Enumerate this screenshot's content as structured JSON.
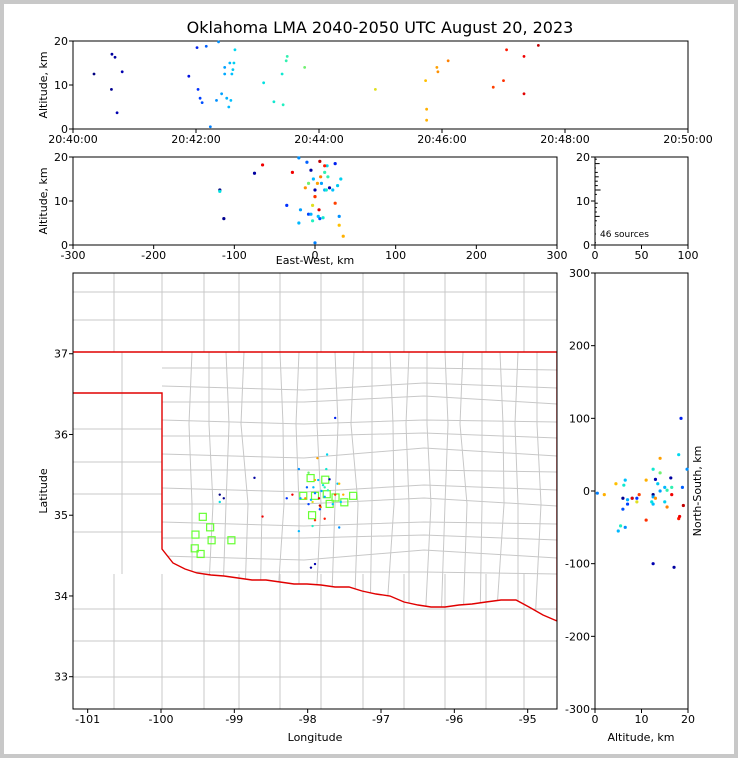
{
  "chart_data": {
    "type": "scatter",
    "title": "Oklahoma LMA 2040-2050 UTC August 20, 2023",
    "panels": {
      "time_altitude": {
        "ylabel": "Altitude, km",
        "ylim": [
          0,
          20
        ],
        "yticks": [
          "0",
          "10",
          "20"
        ],
        "xticks": [
          "20:40:00",
          "20:42:00",
          "20:44:00",
          "20:46:00",
          "20:48:00",
          "20:50:00"
        ],
        "points": [
          {
            "t": 20.5,
            "alt": 12.5,
            "color": "#000080"
          },
          {
            "t": 37.5,
            "alt": 9.0,
            "color": "#000090"
          },
          {
            "t": 38.0,
            "alt": 17.0,
            "color": "#0000a0"
          },
          {
            "t": 41.0,
            "alt": 16.3,
            "color": "#0000a0"
          },
          {
            "t": 43.0,
            "alt": 3.7,
            "color": "#0000b0"
          },
          {
            "t": 48.0,
            "alt": 13.0,
            "color": "#0000b0"
          },
          {
            "t": 113.0,
            "alt": 12.0,
            "color": "#0010e0"
          },
          {
            "t": 121.0,
            "alt": 18.5,
            "color": "#0020f0"
          },
          {
            "t": 122.0,
            "alt": 9.0,
            "color": "#0030ff"
          },
          {
            "t": 124.0,
            "alt": 7.0,
            "color": "#0040ff"
          },
          {
            "t": 126.0,
            "alt": 6.0,
            "color": "#0050ff"
          },
          {
            "t": 130.0,
            "alt": 18.8,
            "color": "#0060ff"
          },
          {
            "t": 134.0,
            "alt": 0.5,
            "color": "#0080ff"
          },
          {
            "t": 140.0,
            "alt": 6.5,
            "color": "#0090ff"
          },
          {
            "t": 142.0,
            "alt": 19.8,
            "color": "#0090ff"
          },
          {
            "t": 145.0,
            "alt": 8.0,
            "color": "#00a0ff"
          },
          {
            "t": 148.0,
            "alt": 14.0,
            "color": "#00a0ff"
          },
          {
            "t": 148.0,
            "alt": 12.5,
            "color": "#00a8ff"
          },
          {
            "t": 150.0,
            "alt": 7.0,
            "color": "#00b0ff"
          },
          {
            "t": 152.0,
            "alt": 5.0,
            "color": "#00b8ff"
          },
          {
            "t": 153.0,
            "alt": 15.0,
            "color": "#00b8ff"
          },
          {
            "t": 154.0,
            "alt": 6.5,
            "color": "#00c0ff"
          },
          {
            "t": 155.0,
            "alt": 12.5,
            "color": "#00c0ff"
          },
          {
            "t": 156.0,
            "alt": 13.5,
            "color": "#00c8f0"
          },
          {
            "t": 157.0,
            "alt": 15.0,
            "color": "#00d0f0"
          },
          {
            "t": 158.0,
            "alt": 18.0,
            "color": "#00d8f0"
          },
          {
            "t": 186.0,
            "alt": 10.5,
            "color": "#00e0e0"
          },
          {
            "t": 196.0,
            "alt": 6.2,
            "color": "#10e8d0"
          },
          {
            "t": 204.0,
            "alt": 12.5,
            "color": "#10e8d0"
          },
          {
            "t": 205.0,
            "alt": 5.5,
            "color": "#20f0c0"
          },
          {
            "t": 208.0,
            "alt": 15.5,
            "color": "#30f0b0"
          },
          {
            "t": 209.0,
            "alt": 16.5,
            "color": "#30f0b0"
          },
          {
            "t": 226.0,
            "alt": 14.0,
            "color": "#70f070"
          },
          {
            "t": 295.0,
            "alt": 9.0,
            "color": "#e0e020"
          },
          {
            "t": 344.0,
            "alt": 11.0,
            "color": "#ffc000"
          },
          {
            "t": 345.0,
            "alt": 4.5,
            "color": "#ffb000"
          },
          {
            "t": 345.0,
            "alt": 2.0,
            "color": "#ffb000"
          },
          {
            "t": 355.0,
            "alt": 14.0,
            "color": "#ffa000"
          },
          {
            "t": 356.0,
            "alt": 13.0,
            "color": "#ff9000"
          },
          {
            "t": 366.0,
            "alt": 15.5,
            "color": "#ff8000"
          },
          {
            "t": 410.0,
            "alt": 9.5,
            "color": "#ff4000"
          },
          {
            "t": 420.0,
            "alt": 11.0,
            "color": "#ff3000"
          },
          {
            "t": 423.0,
            "alt": 18.0,
            "color": "#ff1800"
          },
          {
            "t": 440.0,
            "alt": 16.5,
            "color": "#f00000"
          },
          {
            "t": 440.0,
            "alt": 8.0,
            "color": "#e00000"
          },
          {
            "t": 454.0,
            "alt": 19.0,
            "color": "#c00000"
          }
        ]
      },
      "eastwest_altitude": {
        "xlabel": "East-West, km",
        "ylabel": "Altitude, km",
        "xlim": [
          -300,
          300
        ],
        "ylim": [
          0,
          20
        ],
        "xticks": [
          "-300",
          "-200",
          "-100",
          "0",
          "100",
          "200",
          "300"
        ],
        "yticks": [
          "0",
          "10",
          "20"
        ]
      },
      "histogram": {
        "xlim": [
          0,
          100
        ],
        "ylim": [
          0,
          20
        ],
        "xticks": [
          "0",
          "50",
          "100"
        ],
        "yticks": [
          "0",
          "10",
          "20"
        ],
        "label": "46 sources"
      },
      "map": {
        "xlabel": "Longitude",
        "ylabel": "Latitude",
        "xlim": [
          -101.2,
          -94.6
        ],
        "ylim": [
          32.6,
          38.0
        ],
        "xticks": [
          "-101",
          "-100",
          "-99",
          "-98",
          "-97",
          "-96",
          "-95"
        ],
        "yticks": [
          "33",
          "34",
          "35",
          "36",
          "37"
        ],
        "stations": [
          {
            "lon": -97.96,
            "lat": 35.46
          },
          {
            "lon": -97.76,
            "lat": 35.44
          },
          {
            "lon": -98.06,
            "lat": 35.24
          },
          {
            "lon": -97.9,
            "lat": 35.24
          },
          {
            "lon": -97.74,
            "lat": 35.26
          },
          {
            "lon": -97.62,
            "lat": 35.22
          },
          {
            "lon": -97.38,
            "lat": 35.24
          },
          {
            "lon": -97.5,
            "lat": 35.16
          },
          {
            "lon": -97.7,
            "lat": 35.14
          },
          {
            "lon": -97.94,
            "lat": 35.0
          },
          {
            "lon": -99.43,
            "lat": 34.98
          },
          {
            "lon": -99.33,
            "lat": 34.85
          },
          {
            "lon": -99.53,
            "lat": 34.76
          },
          {
            "lon": -99.31,
            "lat": 34.69
          },
          {
            "lon": -99.04,
            "lat": 34.69
          },
          {
            "lon": -99.54,
            "lat": 34.59
          },
          {
            "lon": -99.46,
            "lat": 34.52
          }
        ]
      },
      "altitude_northsouth": {
        "xlabel": "Altitude, km",
        "ylabel": "North-South, km",
        "xlim": [
          0,
          20
        ],
        "ylim": [
          -300,
          300
        ],
        "xticks": [
          "0",
          "10",
          "20"
        ],
        "yticks": [
          "-300",
          "-200",
          "-100",
          "0",
          "100",
          "200",
          "300"
        ]
      }
    },
    "sources": [
      {
        "ew": -118,
        "ns": -5,
        "alt": 12.5,
        "color": "#000080"
      },
      {
        "ew": -113,
        "ns": -10,
        "alt": 6.0,
        "color": "#000090"
      },
      {
        "ew": -75,
        "ns": 18,
        "alt": 16.3,
        "color": "#0000a0"
      },
      {
        "ew": -5,
        "ns": -105,
        "alt": 17.0,
        "color": "#0000a0"
      },
      {
        "ew": 0,
        "ns": -100,
        "alt": 12.5,
        "color": "#0000b0"
      },
      {
        "ew": 18,
        "ns": 16,
        "alt": 13.0,
        "color": "#0000b0"
      },
      {
        "ew": 25,
        "ns": 100,
        "alt": 18.5,
        "color": "#0020f0"
      },
      {
        "ew": -35,
        "ns": -10,
        "alt": 9.0,
        "color": "#0030ff"
      },
      {
        "ew": -8,
        "ns": -18,
        "alt": 7.0,
        "color": "#0040ff"
      },
      {
        "ew": 6,
        "ns": -25,
        "alt": 6.0,
        "color": "#0050ff"
      },
      {
        "ew": -10,
        "ns": 5,
        "alt": 18.8,
        "color": "#0060ff"
      },
      {
        "ew": 0,
        "ns": -3,
        "alt": 0.5,
        "color": "#0080ff"
      },
      {
        "ew": 30,
        "ns": -50,
        "alt": 6.5,
        "color": "#0090ff"
      },
      {
        "ew": -20,
        "ns": 30,
        "alt": 19.8,
        "color": "#0090ff"
      },
      {
        "ew": -18,
        "ns": -10,
        "alt": 8.0,
        "color": "#00a0ff"
      },
      {
        "ew": 8,
        "ns": 0,
        "alt": 14.0,
        "color": "#00a0ff"
      },
      {
        "ew": 12,
        "ns": -8,
        "alt": 12.5,
        "color": "#00a8ff"
      },
      {
        "ew": -5,
        "ns": -12,
        "alt": 7.0,
        "color": "#00b0ff"
      },
      {
        "ew": -20,
        "ns": -55,
        "alt": 5.0,
        "color": "#00b8ff"
      },
      {
        "ew": -2,
        "ns": 5,
        "alt": 15.0,
        "color": "#00b8ff"
      },
      {
        "ew": 4,
        "ns": 15,
        "alt": 6.5,
        "color": "#00c0ff"
      },
      {
        "ew": 22,
        "ns": -18,
        "alt": 12.5,
        "color": "#00c0ff"
      },
      {
        "ew": 28,
        "ns": 10,
        "alt": 13.5,
        "color": "#00c8f0"
      },
      {
        "ew": 32,
        "ns": -15,
        "alt": 15.0,
        "color": "#00d0f0"
      },
      {
        "ew": 15,
        "ns": 50,
        "alt": 18.0,
        "color": "#00d8f0"
      },
      {
        "ew": -118,
        "ns": -15,
        "alt": 12.2,
        "color": "#00e0e0"
      },
      {
        "ew": 10,
        "ns": 8,
        "alt": 6.2,
        "color": "#10e8d0"
      },
      {
        "ew": 14,
        "ns": 30,
        "alt": 12.5,
        "color": "#10e8d0"
      },
      {
        "ew": -3,
        "ns": -48,
        "alt": 5.5,
        "color": "#20f0c0"
      },
      {
        "ew": 16,
        "ns": 1,
        "alt": 15.5,
        "color": "#30f0b0"
      },
      {
        "ew": 12,
        "ns": 5,
        "alt": 16.5,
        "color": "#30f0b0"
      },
      {
        "ew": -8,
        "ns": 25,
        "alt": 14.0,
        "color": "#70f070"
      },
      {
        "ew": -3,
        "ns": -15,
        "alt": 9.0,
        "color": "#e0e020"
      },
      {
        "ew": 30,
        "ns": 10,
        "alt": 4.5,
        "color": "#ffc000"
      },
      {
        "ew": 35,
        "ns": -5,
        "alt": 2.0,
        "color": "#ffb000"
      },
      {
        "ew": 0,
        "ns": 15,
        "alt": 11.0,
        "color": "#ffb000"
      },
      {
        "ew": 3,
        "ns": 45,
        "alt": 14.0,
        "color": "#ffa000"
      },
      {
        "ew": -12,
        "ns": -10,
        "alt": 13.0,
        "color": "#ff9000"
      },
      {
        "ew": 7,
        "ns": -22,
        "alt": 15.5,
        "color": "#ff8000"
      },
      {
        "ew": 25,
        "ns": -5,
        "alt": 9.5,
        "color": "#ff4000"
      },
      {
        "ew": 0,
        "ns": -40,
        "alt": 11.0,
        "color": "#ff3000"
      },
      {
        "ew": 12,
        "ns": -38,
        "alt": 18.0,
        "color": "#ff1800"
      },
      {
        "ew": -65,
        "ns": -35,
        "alt": 18.2,
        "color": "#f00000"
      },
      {
        "ew": -28,
        "ns": -5,
        "alt": 16.5,
        "color": "#f00000"
      },
      {
        "ew": 5,
        "ns": -10,
        "alt": 8.0,
        "color": "#e00000"
      },
      {
        "ew": 6,
        "ns": -20,
        "alt": 19.0,
        "color": "#c00000"
      }
    ]
  }
}
